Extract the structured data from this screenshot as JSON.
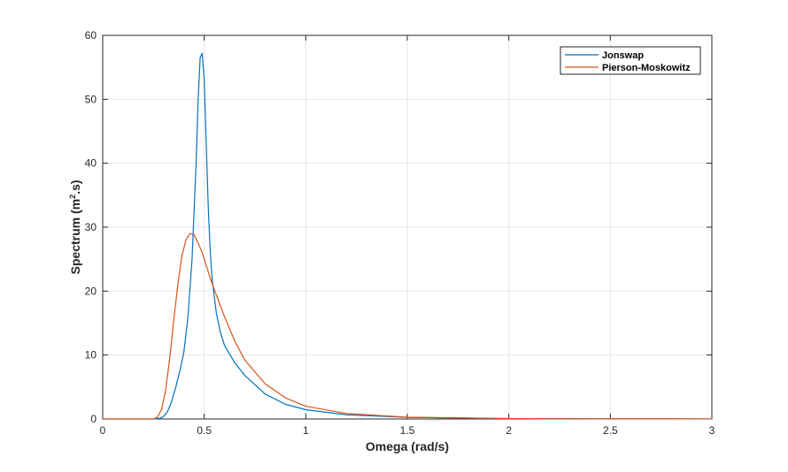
{
  "chart_data": {
    "type": "line",
    "title": "",
    "xlabel": "Omega (rad/s)",
    "ylabel_main": "Spectrum (m",
    "ylabel_sup": "2",
    "ylabel_end": ".s)",
    "xlim": [
      0,
      3
    ],
    "ylim": [
      0,
      60
    ],
    "xticks": [
      0,
      0.5,
      1,
      1.5,
      2,
      2.5,
      3
    ],
    "xtick_labels": [
      "0",
      "0.5",
      "1",
      "1.5",
      "2",
      "2.5",
      "3"
    ],
    "yticks": [
      0,
      10,
      20,
      30,
      40,
      50,
      60
    ],
    "ytick_labels": [
      "0",
      "10",
      "20",
      "30",
      "40",
      "50",
      "60"
    ],
    "grid": true,
    "legend_position": "top-right",
    "series": [
      {
        "name": "Jonswap",
        "color": "#0072BD",
        "x": [
          0,
          0.25,
          0.28,
          0.3,
          0.32,
          0.34,
          0.36,
          0.38,
          0.4,
          0.42,
          0.44,
          0.46,
          0.47,
          0.48,
          0.49,
          0.5,
          0.51,
          0.52,
          0.53,
          0.54,
          0.56,
          0.58,
          0.6,
          0.65,
          0.7,
          0.8,
          0.9,
          1.0,
          1.2,
          1.5,
          2.0,
          2.5,
          3.0
        ],
        "values": [
          0,
          0,
          0.1,
          0.4,
          1.2,
          2.8,
          5.0,
          7.5,
          10.5,
          16,
          25,
          40,
          50,
          56.5,
          57.2,
          53,
          43,
          33,
          26,
          21.5,
          16.5,
          13.5,
          11.5,
          8.8,
          6.8,
          3.9,
          2.3,
          1.45,
          0.65,
          0.25,
          0.06,
          0.02,
          0.01
        ]
      },
      {
        "name": "Pierson-Moskowitz",
        "color": "#D95319",
        "x": [
          0,
          0.25,
          0.27,
          0.29,
          0.31,
          0.33,
          0.35,
          0.37,
          0.39,
          0.41,
          0.43,
          0.45,
          0.47,
          0.49,
          0.51,
          0.53,
          0.55,
          0.6,
          0.65,
          0.7,
          0.8,
          0.9,
          1.0,
          1.2,
          1.5,
          2.0,
          2.5,
          3.0
        ],
        "values": [
          0,
          0,
          0.3,
          1.5,
          4.5,
          9.5,
          15.5,
          21,
          25.5,
          28,
          29,
          28.8,
          27.5,
          26,
          24,
          22,
          20.2,
          16,
          12.2,
          9.2,
          5.5,
          3.3,
          2.0,
          0.85,
          0.28,
          0.07,
          0.02,
          0.01
        ]
      }
    ]
  }
}
